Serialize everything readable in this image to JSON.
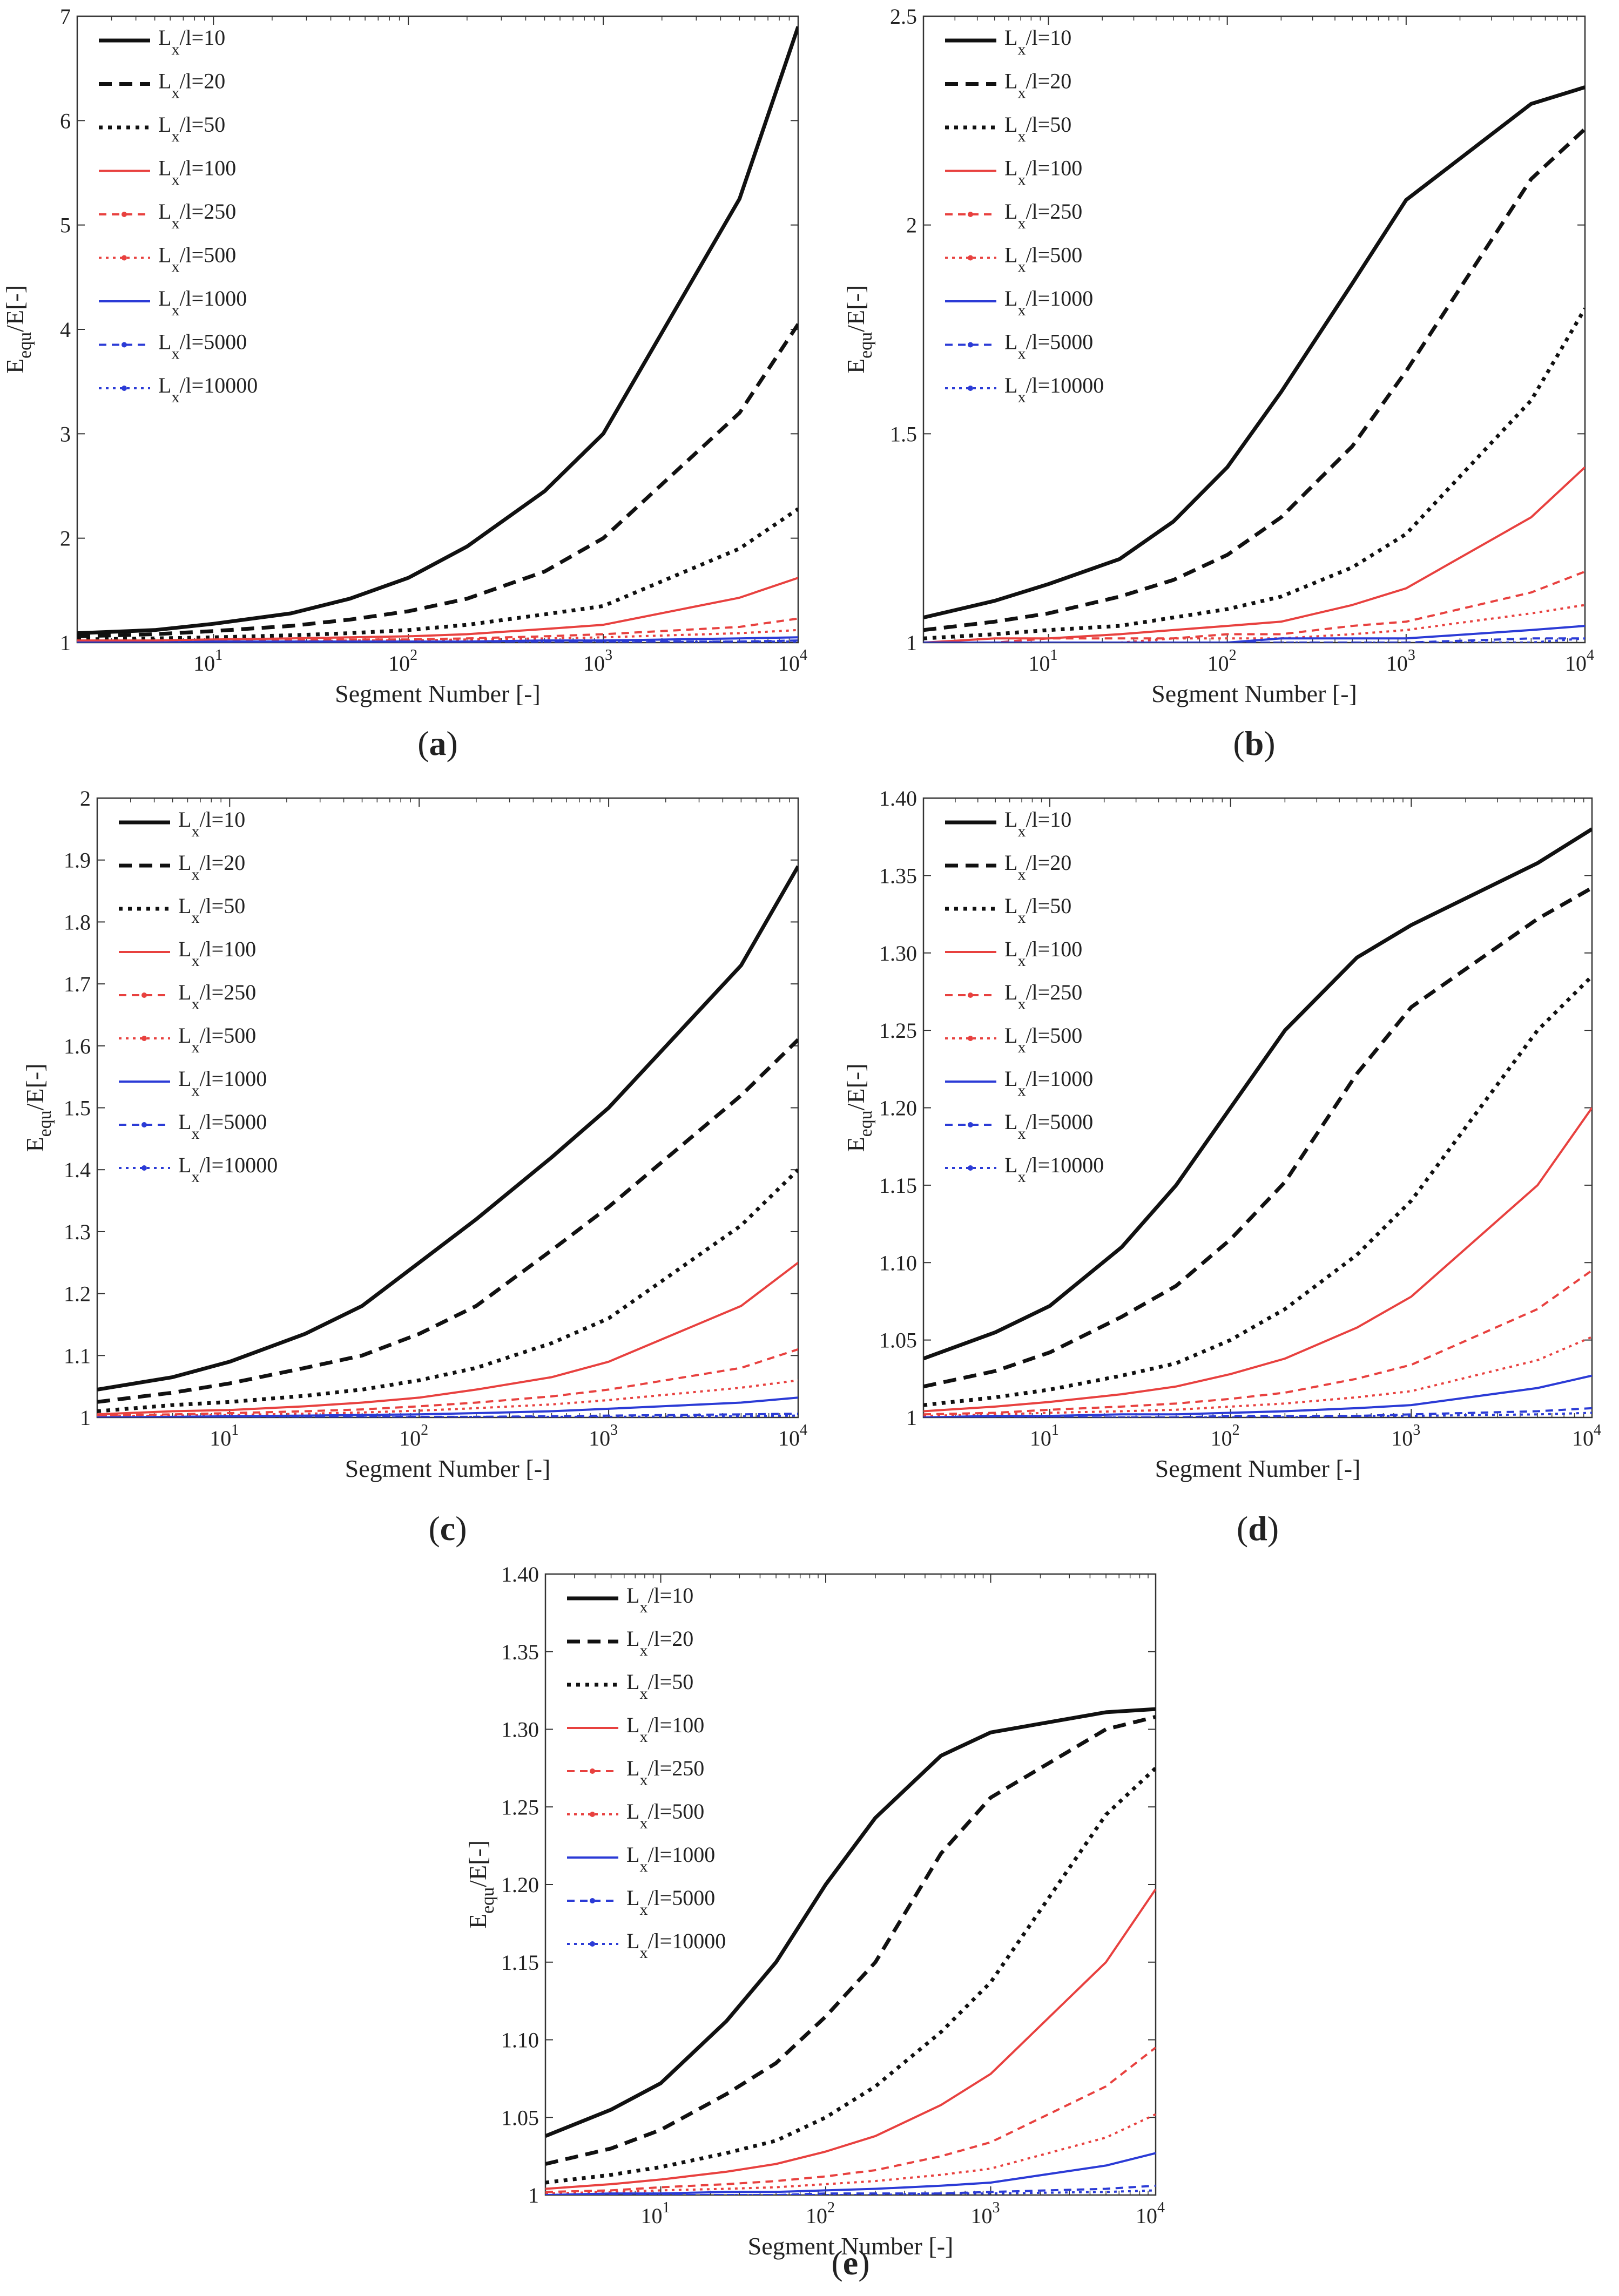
{
  "figure": {
    "legend_entries": [
      {
        "base": "L",
        "sub": "x",
        "rest": "/l=10"
      },
      {
        "base": "L",
        "sub": "x",
        "rest": "/l=20"
      },
      {
        "base": "L",
        "sub": "x",
        "rest": "/l=50"
      },
      {
        "base": "L",
        "sub": "x",
        "rest": "/l=100"
      },
      {
        "base": "L",
        "sub": "x",
        "rest": "/l=250"
      },
      {
        "base": "L",
        "sub": "x",
        "rest": "/l=500"
      },
      {
        "base": "L",
        "sub": "x",
        "rest": "/l=1000"
      },
      {
        "base": "L",
        "sub": "x",
        "rest": "/l=5000"
      },
      {
        "base": "L",
        "sub": "x",
        "rest": "/l=10000"
      }
    ],
    "series_colors": [
      "#111111",
      "#111111",
      "#111111",
      "#e8413f",
      "#e8413f",
      "#e8413f",
      "#2b3bd6",
      "#2b3bd6",
      "#2b3bd6"
    ]
  },
  "chart_data": [
    {
      "type": "line",
      "panel": "(a)",
      "panel_letter": "a",
      "xscale": "log",
      "xlim": [
        2,
        10000
      ],
      "ylim": [
        1,
        7
      ],
      "yticks": [
        1,
        2,
        3,
        4,
        5,
        6,
        7
      ],
      "ytick_labels": [
        "1",
        "2",
        "3",
        "4",
        "5",
        "6",
        "7"
      ],
      "xticks": [
        {
          "base": "10",
          "exp": "1",
          "value": 10
        },
        {
          "base": "10",
          "exp": "2",
          "value": 100
        },
        {
          "base": "10",
          "exp": "3",
          "value": 1000
        },
        {
          "base": "10",
          "exp": "4",
          "value": 10000
        }
      ],
      "xlabel": "Segment Number [-]",
      "ylabel": {
        "base": "E",
        "sub": "equ",
        "rest": "/E[-]"
      },
      "x": [
        2,
        5,
        10,
        25,
        50,
        100,
        200,
        500,
        1000,
        5000,
        10000
      ],
      "series": [
        {
          "name": "Lx/l=10",
          "values": [
            1.09,
            1.12,
            1.18,
            1.28,
            1.42,
            1.62,
            1.92,
            2.45,
            3.0,
            5.25,
            6.9
          ]
        },
        {
          "name": "Lx/l=20",
          "values": [
            1.06,
            1.08,
            1.11,
            1.16,
            1.22,
            1.3,
            1.42,
            1.68,
            2.0,
            3.2,
            4.05
          ]
        },
        {
          "name": "Lx/l=50",
          "values": [
            1.03,
            1.04,
            1.05,
            1.07,
            1.09,
            1.12,
            1.17,
            1.27,
            1.35,
            1.9,
            2.28
          ]
        },
        {
          "name": "Lx/l=100",
          "values": [
            1.02,
            1.02,
            1.03,
            1.04,
            1.05,
            1.06,
            1.08,
            1.13,
            1.17,
            1.43,
            1.62
          ]
        },
        {
          "name": "Lx/l=250",
          "values": [
            1.01,
            1.01,
            1.02,
            1.02,
            1.03,
            1.03,
            1.04,
            1.06,
            1.08,
            1.15,
            1.23
          ]
        },
        {
          "name": "Lx/l=500",
          "values": [
            1.01,
            1.01,
            1.01,
            1.01,
            1.02,
            1.02,
            1.03,
            1.04,
            1.05,
            1.09,
            1.12
          ]
        },
        {
          "name": "Lx/l=1000",
          "values": [
            1.0,
            1.0,
            1.01,
            1.01,
            1.01,
            1.01,
            1.01,
            1.02,
            1.02,
            1.04,
            1.05
          ]
        },
        {
          "name": "Lx/l=5000",
          "values": [
            1.0,
            1.0,
            1.0,
            1.0,
            1.0,
            1.0,
            1.0,
            1.0,
            1.01,
            1.01,
            1.02
          ]
        },
        {
          "name": "Lx/l=10000",
          "values": [
            1.0,
            1.0,
            1.0,
            1.0,
            1.0,
            1.0,
            1.0,
            1.0,
            1.0,
            1.01,
            1.01
          ]
        }
      ]
    },
    {
      "type": "line",
      "panel": "(b)",
      "panel_letter": "b",
      "xscale": "log",
      "xlim": [
        2,
        10000
      ],
      "ylim": [
        1,
        2.5
      ],
      "yticks": [
        1,
        1.5,
        2,
        2.5
      ],
      "ytick_labels": [
        "1",
        "1.5",
        "2",
        "2.5"
      ],
      "xticks": [
        {
          "base": "10",
          "exp": "1",
          "value": 10
        },
        {
          "base": "10",
          "exp": "2",
          "value": 100
        },
        {
          "base": "10",
          "exp": "3",
          "value": 1000
        },
        {
          "base": "10",
          "exp": "4",
          "value": 10000
        }
      ],
      "xlabel": "Segment Number [-]",
      "ylabel": {
        "base": "E",
        "sub": "equ",
        "rest": "/E[-]"
      },
      "x": [
        2,
        5,
        10,
        25,
        50,
        100,
        200,
        500,
        1000,
        5000,
        10000
      ],
      "series": [
        {
          "name": "Lx/l=10",
          "values": [
            1.06,
            1.1,
            1.14,
            1.2,
            1.29,
            1.42,
            1.6,
            1.86,
            2.06,
            2.29,
            2.33
          ]
        },
        {
          "name": "Lx/l=20",
          "values": [
            1.03,
            1.05,
            1.07,
            1.11,
            1.15,
            1.21,
            1.3,
            1.47,
            1.65,
            2.11,
            2.23
          ]
        },
        {
          "name": "Lx/l=50",
          "values": [
            1.01,
            1.02,
            1.03,
            1.04,
            1.06,
            1.08,
            1.11,
            1.18,
            1.26,
            1.58,
            1.8
          ]
        },
        {
          "name": "Lx/l=100",
          "values": [
            1.0,
            1.01,
            1.01,
            1.02,
            1.03,
            1.04,
            1.05,
            1.09,
            1.13,
            1.3,
            1.42
          ]
        },
        {
          "name": "Lx/l=250",
          "values": [
            1.0,
            1.0,
            1.01,
            1.01,
            1.01,
            1.02,
            1.02,
            1.04,
            1.05,
            1.12,
            1.17
          ]
        },
        {
          "name": "Lx/l=500",
          "values": [
            1.0,
            1.0,
            1.0,
            1.0,
            1.01,
            1.01,
            1.01,
            1.02,
            1.03,
            1.07,
            1.09
          ]
        },
        {
          "name": "Lx/l=1000",
          "values": [
            1.0,
            1.0,
            1.0,
            1.0,
            1.0,
            1.0,
            1.01,
            1.01,
            1.01,
            1.03,
            1.04
          ]
        },
        {
          "name": "Lx/l=5000",
          "values": [
            1.0,
            1.0,
            1.0,
            1.0,
            1.0,
            1.0,
            1.0,
            1.0,
            1.0,
            1.01,
            1.01
          ]
        },
        {
          "name": "Lx/l=10000",
          "values": [
            1.0,
            1.0,
            1.0,
            1.0,
            1.0,
            1.0,
            1.0,
            1.0,
            1.0,
            1.0,
            1.01
          ]
        }
      ]
    },
    {
      "type": "line",
      "panel": "(c)",
      "panel_letter": "c",
      "xscale": "log",
      "xlim": [
        2,
        10000
      ],
      "ylim": [
        1,
        2
      ],
      "yticks": [
        1,
        1.1,
        1.2,
        1.3,
        1.4,
        1.5,
        1.6,
        1.7,
        1.8,
        1.9,
        2
      ],
      "ytick_labels": [
        "1",
        "1.1",
        "1.2",
        "1.3",
        "1.4",
        "1.5",
        "1.6",
        "1.7",
        "1.8",
        "1.9",
        "2"
      ],
      "xticks": [
        {
          "base": "10",
          "exp": "1",
          "value": 10
        },
        {
          "base": "10",
          "exp": "2",
          "value": 100
        },
        {
          "base": "10",
          "exp": "3",
          "value": 1000
        },
        {
          "base": "10",
          "exp": "4",
          "value": 10000
        }
      ],
      "xlabel": "Segment Number [-]",
      "ylabel": {
        "base": "E",
        "sub": "equ",
        "rest": "/E[-]"
      },
      "x": [
        2,
        5,
        10,
        25,
        50,
        100,
        200,
        500,
        1000,
        5000,
        10000
      ],
      "series": [
        {
          "name": "Lx/l=10",
          "values": [
            1.045,
            1.065,
            1.09,
            1.135,
            1.18,
            1.25,
            1.32,
            1.42,
            1.5,
            1.73,
            1.89
          ]
        },
        {
          "name": "Lx/l=20",
          "values": [
            1.025,
            1.04,
            1.055,
            1.08,
            1.1,
            1.135,
            1.18,
            1.27,
            1.34,
            1.52,
            1.61
          ]
        },
        {
          "name": "Lx/l=50",
          "values": [
            1.01,
            1.02,
            1.025,
            1.035,
            1.045,
            1.06,
            1.08,
            1.12,
            1.16,
            1.31,
            1.4
          ]
        },
        {
          "name": "Lx/l=100",
          "values": [
            1.005,
            1.01,
            1.012,
            1.018,
            1.024,
            1.032,
            1.045,
            1.065,
            1.09,
            1.18,
            1.25
          ]
        },
        {
          "name": "Lx/l=250",
          "values": [
            1.003,
            1.005,
            1.007,
            1.01,
            1.013,
            1.018,
            1.024,
            1.034,
            1.045,
            1.08,
            1.11
          ]
        },
        {
          "name": "Lx/l=500",
          "values": [
            1.002,
            1.003,
            1.004,
            1.006,
            1.008,
            1.011,
            1.015,
            1.021,
            1.028,
            1.048,
            1.06
          ]
        },
        {
          "name": "Lx/l=1000",
          "values": [
            1.0,
            1.001,
            1.002,
            1.003,
            1.004,
            1.005,
            1.007,
            1.01,
            1.014,
            1.024,
            1.032
          ]
        },
        {
          "name": "Lx/l=5000",
          "values": [
            1.0,
            1.0,
            1.0,
            1.0,
            1.001,
            1.001,
            1.001,
            1.002,
            1.003,
            1.005,
            1.006
          ]
        },
        {
          "name": "Lx/l=10000",
          "values": [
            1.0,
            1.0,
            1.0,
            1.0,
            1.0,
            1.0,
            1.001,
            1.001,
            1.001,
            1.002,
            1.003
          ]
        }
      ]
    },
    {
      "type": "line",
      "panel": "(d)",
      "panel_letter": "d",
      "xscale": "log",
      "xlim": [
        2,
        10000
      ],
      "ylim": [
        1,
        1.4
      ],
      "yticks": [
        1,
        1.05,
        1.1,
        1.15,
        1.2,
        1.25,
        1.3,
        1.35,
        1.4
      ],
      "ytick_labels": [
        "1",
        "1.05",
        "1.10",
        "1.15",
        "1.20",
        "1.25",
        "1.30",
        "1.35",
        "1.40"
      ],
      "xticks": [
        {
          "base": "10",
          "exp": "1",
          "value": 10
        },
        {
          "base": "10",
          "exp": "2",
          "value": 100
        },
        {
          "base": "10",
          "exp": "3",
          "value": 1000
        },
        {
          "base": "10",
          "exp": "4",
          "value": 10000
        }
      ],
      "xlabel": "Segment Number [-]",
      "ylabel": {
        "base": "E",
        "sub": "equ",
        "rest": "/E[-]"
      },
      "x": [
        2,
        5,
        10,
        25,
        50,
        100,
        200,
        500,
        1000,
        5000,
        10000
      ],
      "series": [
        {
          "name": "Lx/l=10",
          "values": [
            1.038,
            1.055,
            1.072,
            1.11,
            1.15,
            1.2,
            1.25,
            1.297,
            1.318,
            1.358,
            1.38
          ]
        },
        {
          "name": "Lx/l=20",
          "values": [
            1.02,
            1.03,
            1.042,
            1.065,
            1.085,
            1.115,
            1.152,
            1.222,
            1.265,
            1.322,
            1.342
          ]
        },
        {
          "name": "Lx/l=50",
          "values": [
            1.008,
            1.013,
            1.018,
            1.027,
            1.035,
            1.05,
            1.07,
            1.105,
            1.14,
            1.25,
            1.285
          ]
        },
        {
          "name": "Lx/l=100",
          "values": [
            1.004,
            1.007,
            1.01,
            1.015,
            1.02,
            1.028,
            1.038,
            1.058,
            1.078,
            1.15,
            1.2
          ]
        },
        {
          "name": "Lx/l=250",
          "values": [
            1.002,
            1.003,
            1.005,
            1.007,
            1.009,
            1.012,
            1.016,
            1.025,
            1.034,
            1.07,
            1.095
          ]
        },
        {
          "name": "Lx/l=500",
          "values": [
            1.001,
            1.002,
            1.003,
            1.004,
            1.005,
            1.007,
            1.009,
            1.013,
            1.017,
            1.037,
            1.052
          ]
        },
        {
          "name": "Lx/l=1000",
          "values": [
            1.0,
            1.001,
            1.001,
            1.002,
            1.002,
            1.003,
            1.004,
            1.006,
            1.008,
            1.019,
            1.027
          ]
        },
        {
          "name": "Lx/l=5000",
          "values": [
            1.0,
            1.0,
            1.0,
            1.0,
            1.0,
            1.001,
            1.001,
            1.001,
            1.002,
            1.004,
            1.006
          ]
        },
        {
          "name": "Lx/l=10000",
          "values": [
            1.0,
            1.0,
            1.0,
            1.0,
            1.0,
            1.0,
            1.0,
            1.001,
            1.001,
            1.002,
            1.003
          ]
        }
      ]
    },
    {
      "type": "line",
      "panel": "(e)",
      "panel_letter": "e",
      "xscale": "log",
      "xlim": [
        2,
        10000
      ],
      "ylim": [
        1,
        1.4
      ],
      "yticks": [
        1,
        1.05,
        1.1,
        1.15,
        1.2,
        1.25,
        1.3,
        1.35,
        1.4
      ],
      "ytick_labels": [
        "1",
        "1.05",
        "1.10",
        "1.15",
        "1.20",
        "1.25",
        "1.30",
        "1.35",
        "1.40"
      ],
      "xticks": [
        {
          "base": "10",
          "exp": "1",
          "value": 10
        },
        {
          "base": "10",
          "exp": "2",
          "value": 100
        },
        {
          "base": "10",
          "exp": "3",
          "value": 1000
        },
        {
          "base": "10",
          "exp": "4",
          "value": 10000
        }
      ],
      "xlabel": "Segment Number [-]",
      "ylabel": {
        "base": "E",
        "sub": "equ",
        "rest": "/E[-]"
      },
      "x": [
        2,
        5,
        10,
        25,
        50,
        100,
        200,
        500,
        1000,
        5000,
        10000
      ],
      "series": [
        {
          "name": "Lx/l=10",
          "values": [
            1.038,
            1.055,
            1.072,
            1.112,
            1.15,
            1.2,
            1.243,
            1.283,
            1.298,
            1.311,
            1.313
          ]
        },
        {
          "name": "Lx/l=20",
          "values": [
            1.02,
            1.03,
            1.042,
            1.065,
            1.085,
            1.115,
            1.15,
            1.22,
            1.256,
            1.3,
            1.308
          ]
        },
        {
          "name": "Lx/l=50",
          "values": [
            1.008,
            1.013,
            1.018,
            1.027,
            1.035,
            1.05,
            1.07,
            1.105,
            1.137,
            1.245,
            1.275
          ]
        },
        {
          "name": "Lx/l=100",
          "values": [
            1.004,
            1.007,
            1.01,
            1.015,
            1.02,
            1.028,
            1.038,
            1.058,
            1.078,
            1.15,
            1.197
          ]
        },
        {
          "name": "Lx/l=250",
          "values": [
            1.002,
            1.003,
            1.005,
            1.007,
            1.009,
            1.012,
            1.016,
            1.025,
            1.034,
            1.07,
            1.095
          ]
        },
        {
          "name": "Lx/l=500",
          "values": [
            1.001,
            1.002,
            1.003,
            1.004,
            1.005,
            1.007,
            1.009,
            1.013,
            1.017,
            1.037,
            1.052
          ]
        },
        {
          "name": "Lx/l=1000",
          "values": [
            1.0,
            1.001,
            1.001,
            1.002,
            1.002,
            1.003,
            1.004,
            1.006,
            1.008,
            1.019,
            1.027
          ]
        },
        {
          "name": "Lx/l=5000",
          "values": [
            1.0,
            1.0,
            1.0,
            1.0,
            1.0,
            1.001,
            1.001,
            1.001,
            1.002,
            1.004,
            1.006
          ]
        },
        {
          "name": "Lx/l=10000",
          "values": [
            1.0,
            1.0,
            1.0,
            1.0,
            1.0,
            1.0,
            1.0,
            1.001,
            1.001,
            1.002,
            1.003
          ]
        }
      ]
    }
  ]
}
